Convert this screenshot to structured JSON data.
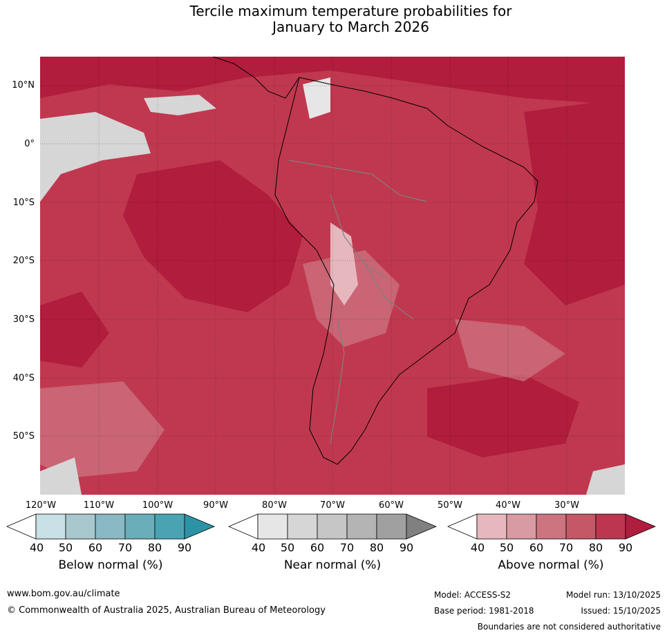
{
  "title": {
    "line1": "Tercile maximum temperature probabilities for",
    "line2": "January to March 2026"
  },
  "map": {
    "latitude_labels": [
      "10°N",
      "0°",
      "10°S",
      "20°S",
      "30°S",
      "40°S",
      "50°S"
    ],
    "longitude_labels": [
      "120°W",
      "110°W",
      "100°W",
      "90°W",
      "80°W",
      "70°W",
      "60°W",
      "50°W",
      "40°W",
      "30°W"
    ],
    "ocean_color": "#c0384f"
  },
  "colorbars": {
    "below": {
      "title": "Below normal (%)",
      "ticks": [
        "40",
        "50",
        "60",
        "70",
        "80",
        "90"
      ],
      "colors": [
        "#ffffff",
        "#c8e0e6",
        "#a8c8ce",
        "#8ab8c3",
        "#6aaeba",
        "#4aa3b3",
        "#2c93a5"
      ]
    },
    "near": {
      "title": "Near normal (%)",
      "ticks": [
        "40",
        "50",
        "60",
        "70",
        "80",
        "90"
      ],
      "colors": [
        "#ffffff",
        "#e6e6e6",
        "#d6d6d6",
        "#c6c6c6",
        "#b4b4b4",
        "#a0a0a0",
        "#808080"
      ]
    },
    "above": {
      "title": "Above normal (%)",
      "ticks": [
        "40",
        "50",
        "60",
        "70",
        "80",
        "90"
      ],
      "colors": [
        "#ffffff",
        "#e6b8be",
        "#d89aa3",
        "#cc7480",
        "#c45866",
        "#bc3650",
        "#b11d3c"
      ]
    }
  },
  "footer": {
    "website": "www.bom.gov.au/climate",
    "copyright": "© Commonwealth of Australia 2025, Australian Bureau of Meteorology",
    "model": "Model: ACCESS-S2",
    "base_period": "Base period: 1981-2018",
    "model_run": "Model run: 13/10/2025",
    "issued": "Issued: 15/10/2025",
    "boundaries_note": "Boundaries are not considered authoritative"
  }
}
